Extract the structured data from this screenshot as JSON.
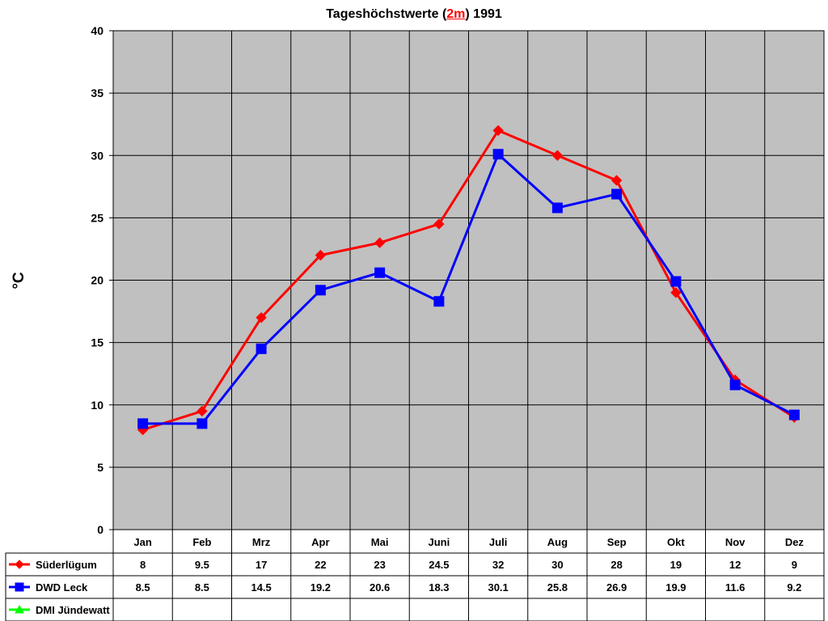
{
  "title": {
    "prefix": "Tageshöchstwerte (",
    "highlight": "2m",
    "suffix": ") 1991"
  },
  "chart_data": {
    "type": "line",
    "ylabel": "°C",
    "xlabel": "",
    "ylim": [
      0,
      40
    ],
    "yticks": [
      0,
      5,
      10,
      15,
      20,
      25,
      30,
      35,
      40
    ],
    "grid": true,
    "legend": "data-table",
    "categories": [
      "Jan",
      "Feb",
      "Mrz",
      "Apr",
      "Mai",
      "Juni",
      "Juli",
      "Aug",
      "Sep",
      "Okt",
      "Nov",
      "Dez"
    ],
    "series": [
      {
        "name": "Süderlügum",
        "color": "#ff0000",
        "marker": "diamond",
        "values": [
          8,
          9.5,
          17,
          22,
          23,
          24.5,
          32,
          30,
          28,
          19,
          12,
          9
        ]
      },
      {
        "name": "DWD Leck",
        "color": "#0000ff",
        "marker": "square",
        "values": [
          8.5,
          8.5,
          14.5,
          19.2,
          20.6,
          18.3,
          30.1,
          25.8,
          26.9,
          19.9,
          11.6,
          9.2
        ]
      },
      {
        "name": "DMI Jündewatt",
        "color": "#00ff00",
        "marker": "triangle",
        "values": [
          null,
          null,
          null,
          null,
          null,
          null,
          null,
          null,
          null,
          null,
          null,
          null
        ]
      }
    ]
  }
}
